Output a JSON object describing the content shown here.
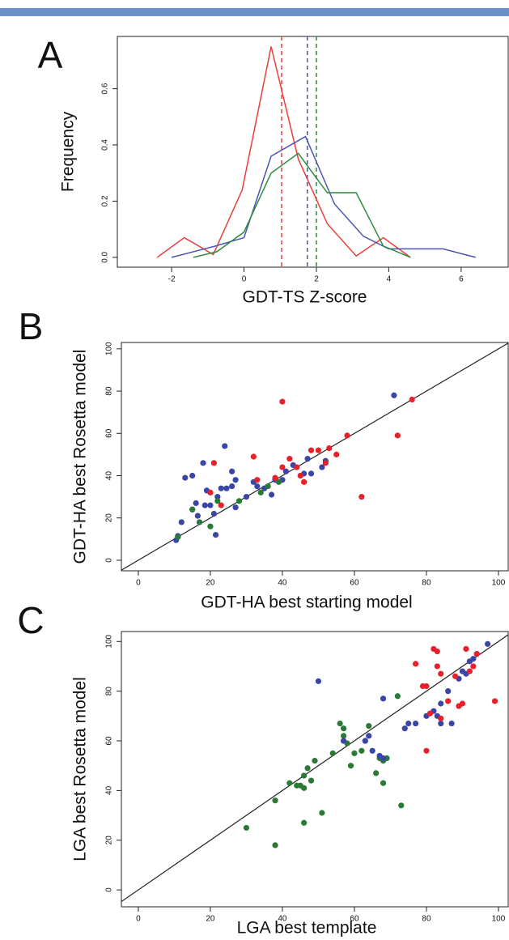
{
  "chart_data": [
    {
      "type": "line",
      "label": "A",
      "xlabel": "GDT-TS Z-score",
      "ylabel": "Frequency",
      "xlim": [
        -3.5,
        7.3
      ],
      "ylim": [
        -0.035,
        0.786
      ],
      "xticks": [
        -2,
        0,
        2,
        4,
        6
      ],
      "yticks": [
        {
          "value": 0,
          "label": "0.0"
        },
        0.2,
        0.4,
        0.6
      ],
      "series": [
        {
          "color": "#e8403a",
          "x": [
            -2.4,
            -1.65,
            -0.85,
            -0.05,
            0.75,
            1.5,
            2.3,
            3.1,
            3.85,
            4.6
          ],
          "values": [
            0,
            0.07,
            0.01,
            0.24,
            0.75,
            0.35,
            0.12,
            0.005,
            0.07,
            0
          ]
        },
        {
          "color": "#4a55b0",
          "x": [
            -2.0,
            -0.8,
            0.0,
            0.75,
            1.7,
            2.5,
            3.3,
            4.0,
            5.5,
            6.4
          ],
          "values": [
            0,
            0.04,
            0.07,
            0.36,
            0.43,
            0.19,
            0.075,
            0.03,
            0.03,
            0
          ]
        },
        {
          "color": "#2e8b3e",
          "x": [
            -1.4,
            -0.75,
            0.0,
            0.75,
            1.5,
            2.3,
            3.1,
            3.85,
            4.6
          ],
          "values": [
            0,
            0.02,
            0.09,
            0.3,
            0.37,
            0.23,
            0.23,
            0.04,
            0
          ]
        }
      ],
      "vlines": [
        {
          "value": 1.04,
          "color": "#e8403a"
        },
        {
          "value": 1.75,
          "color": "#4a55b0"
        },
        {
          "value": 2.0,
          "color": "#2e8b3e"
        }
      ]
    },
    {
      "type": "scatter",
      "label": "B",
      "xlabel": "GDT-HA best starting model",
      "ylabel": "GDT-HA best Rosetta model",
      "xlim": [
        -4.7,
        102.7
      ],
      "ylim": [
        -5,
        103
      ],
      "xticks": [
        0,
        20,
        40,
        60,
        80,
        100
      ],
      "yticks": [
        0,
        20,
        40,
        60,
        80,
        100
      ],
      "diagonal": true,
      "series": [
        {
          "color": "#3a45a8",
          "x": [
            10.5,
            11,
            12,
            13,
            15,
            15,
            16,
            16.5,
            17,
            18,
            18.5,
            19,
            20,
            21,
            21.5,
            22,
            23,
            24,
            24.5,
            26,
            26,
            27,
            27,
            30,
            32,
            33,
            35,
            37,
            38,
            40,
            41,
            43,
            46,
            47,
            48,
            51,
            52,
            71
          ],
          "values": [
            9.5,
            11.5,
            18,
            39,
            40,
            24,
            27,
            21,
            18,
            46,
            26,
            33,
            26,
            22,
            12,
            30,
            34,
            54,
            34,
            42,
            35,
            38,
            25,
            30,
            37,
            35,
            34,
            31,
            38,
            38,
            42,
            45,
            41,
            48,
            41,
            44,
            47,
            78
          ]
        },
        {
          "color": "#2a7a35",
          "x": [
            11,
            15,
            17,
            20,
            22,
            28,
            34,
            36,
            39
          ],
          "values": [
            11,
            24,
            18,
            16,
            28,
            28,
            32,
            35,
            37
          ]
        },
        {
          "color": "#e8202a",
          "x": [
            20,
            21,
            23,
            32,
            33,
            38,
            40,
            40,
            42,
            44,
            45,
            46,
            48,
            50,
            52,
            53,
            55,
            58,
            62,
            72,
            76
          ],
          "values": [
            32,
            46,
            26,
            49,
            38,
            39,
            75,
            44,
            48,
            44,
            40,
            37,
            52,
            52,
            46,
            53,
            50,
            59,
            30,
            59,
            76
          ]
        }
      ]
    },
    {
      "type": "scatter",
      "label": "C",
      "xlabel": "LGA best template",
      "ylabel": "LGA best Rosetta model",
      "xlim": [
        -4.7,
        102.7
      ],
      "ylim": [
        -6.8,
        104
      ],
      "xticks": [
        0,
        20,
        40,
        60,
        80,
        100
      ],
      "yticks": [
        0,
        20,
        40,
        60,
        80,
        100
      ],
      "diagonal": true,
      "series": [
        {
          "color": "#2a7a35",
          "x": [
            30,
            38,
            38,
            42,
            44,
            45,
            46,
            46,
            46,
            47,
            48,
            49,
            51,
            54,
            56,
            57,
            57,
            58,
            59,
            60,
            62,
            63,
            64,
            66,
            67,
            68,
            68,
            69,
            72,
            73
          ],
          "values": [
            25,
            36,
            18,
            43,
            42,
            42,
            27,
            46,
            41,
            49,
            44,
            52,
            31,
            55,
            67,
            62,
            65,
            59,
            50,
            55,
            56,
            60,
            66,
            47,
            53,
            43,
            52,
            53,
            78,
            34
          ]
        },
        {
          "color": "#3a45a8",
          "x": [
            50,
            57,
            63,
            64,
            65,
            67,
            68,
            68,
            74,
            75,
            77,
            80,
            82,
            83,
            84,
            84,
            86,
            87,
            89,
            90,
            91,
            92,
            93,
            94,
            97
          ],
          "values": [
            84,
            60,
            60,
            62,
            56,
            54,
            77,
            53,
            65,
            67,
            67,
            70,
            72,
            70,
            75,
            67,
            80,
            67,
            85,
            88,
            87,
            92,
            93,
            95,
            99
          ]
        },
        {
          "color": "#e8202a",
          "x": [
            77,
            79,
            80,
            80,
            81,
            82,
            83,
            83,
            84,
            84,
            86,
            88,
            89,
            90,
            91,
            92,
            93,
            94,
            99
          ],
          "values": [
            91,
            82,
            82,
            56,
            71,
            97,
            96,
            90,
            87,
            69,
            76,
            86,
            74,
            75,
            97,
            88,
            90,
            95,
            76
          ]
        }
      ]
    }
  ]
}
